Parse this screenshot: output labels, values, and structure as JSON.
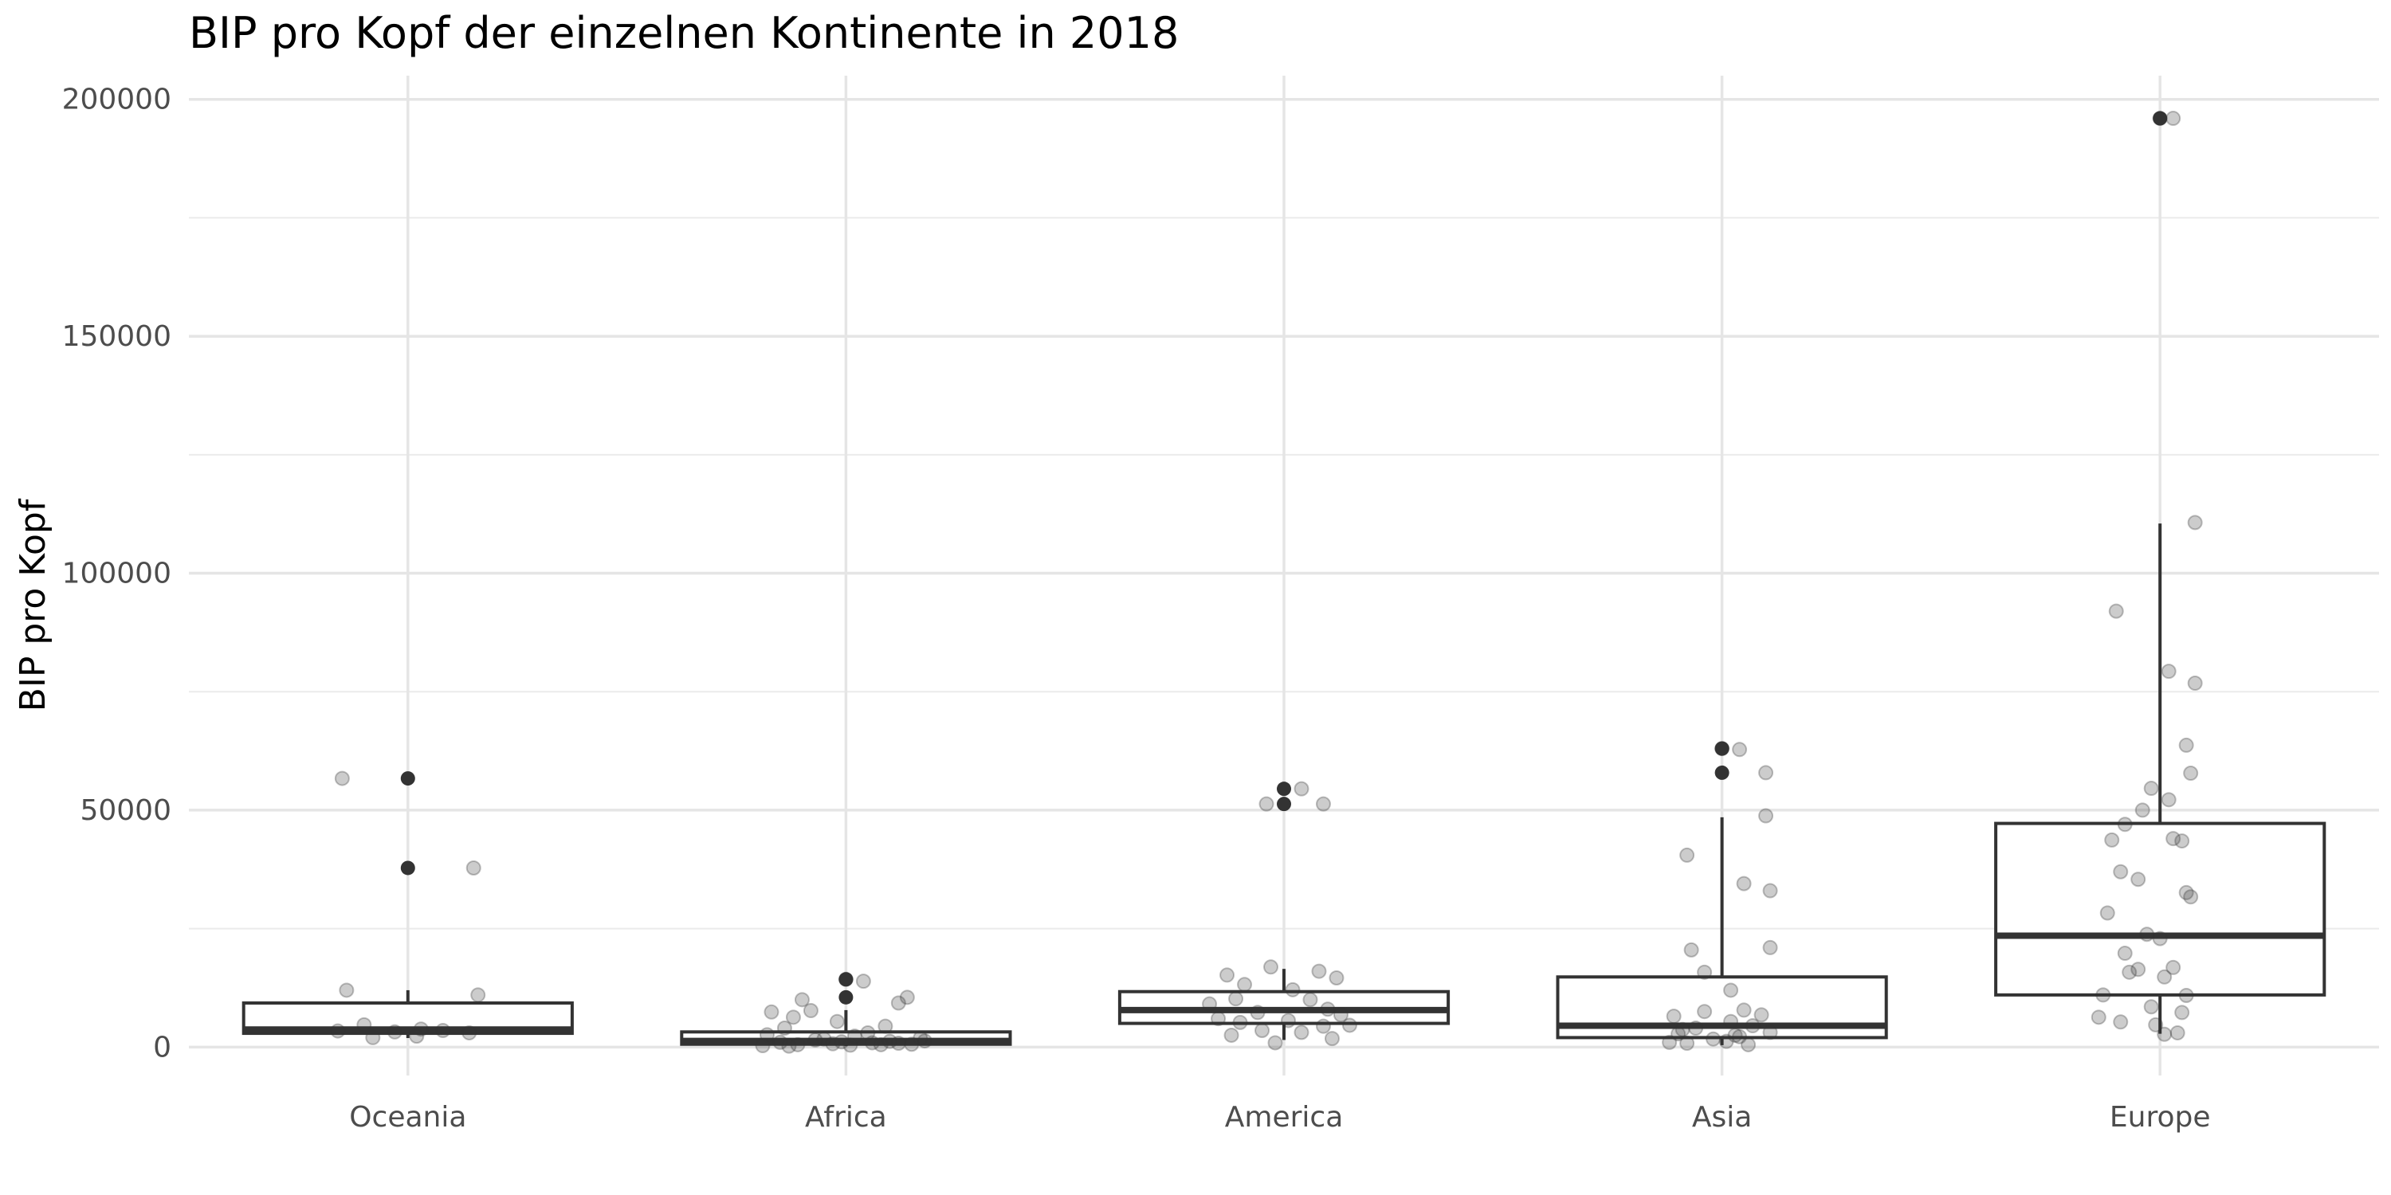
{
  "chart_data": {
    "type": "boxplot",
    "title": "BIP pro Kopf der einzelnen Kontinente in 2018",
    "xlabel": "",
    "ylabel": "BIP pro Kopf",
    "ylim": [
      -6000,
      205000
    ],
    "yticks": [
      0,
      50000,
      100000,
      150000,
      200000
    ],
    "grid": true,
    "categories": [
      "Oceania",
      "Africa",
      "America",
      "Asia",
      "Europe"
    ],
    "box_color": "#333333",
    "point_color": "#333333",
    "boxes": [
      {
        "category": "Oceania",
        "q1": 2900,
        "median": 3700,
        "q3": 9300,
        "whisker_low": 1900,
        "whisker_high": 12000,
        "outliers": [
          37800,
          56700
        ],
        "points": [
          [
            -0.15,
            56700
          ],
          [
            0.15,
            37800
          ],
          [
            -0.14,
            12000
          ],
          [
            0.16,
            11000
          ],
          [
            -0.1,
            4700
          ],
          [
            0.03,
            3800
          ],
          [
            0.08,
            3500
          ],
          [
            -0.03,
            3200
          ],
          [
            0.14,
            3000
          ],
          [
            -0.16,
            3400
          ],
          [
            0.02,
            2300
          ],
          [
            -0.08,
            2000
          ]
        ]
      },
      {
        "category": "Africa",
        "q1": 600,
        "median": 1300,
        "q3": 3200,
        "whisker_low": 200,
        "whisker_high": 7800,
        "outliers": [
          10500,
          14300
        ],
        "points": [
          [
            0.0,
            14300
          ],
          [
            0.04,
            13900
          ],
          [
            0.14,
            10500
          ],
          [
            -0.1,
            10000
          ],
          [
            0.12,
            9300
          ],
          [
            -0.17,
            7400
          ],
          [
            -0.08,
            7700
          ],
          [
            -0.12,
            6300
          ],
          [
            -0.02,
            5400
          ],
          [
            0.09,
            4400
          ],
          [
            -0.14,
            4000
          ],
          [
            0.05,
            3000
          ],
          [
            -0.18,
            2600
          ],
          [
            0.02,
            2300
          ],
          [
            0.17,
            1900
          ],
          [
            -0.07,
            1500
          ],
          [
            0.1,
            1200
          ],
          [
            -0.15,
            1000
          ],
          [
            0.06,
            900
          ],
          [
            -0.03,
            700
          ],
          [
            0.15,
            600
          ],
          [
            -0.11,
            500
          ],
          [
            0.01,
            400
          ],
          [
            -0.19,
            300
          ],
          [
            0.12,
            800
          ],
          [
            -0.05,
            1700
          ],
          [
            0.18,
            1300
          ],
          [
            -0.01,
            1100
          ],
          [
            0.08,
            500
          ],
          [
            -0.13,
            200
          ]
        ]
      },
      {
        "category": "America",
        "q1": 5000,
        "median": 7800,
        "q3": 11700,
        "whisker_low": 1500,
        "whisker_high": 16500,
        "outliers": [
          51300,
          54500
        ],
        "points": [
          [
            0.04,
            54500
          ],
          [
            -0.04,
            51300
          ],
          [
            0.09,
            51300
          ],
          [
            -0.03,
            16900
          ],
          [
            0.08,
            16000
          ],
          [
            -0.13,
            15200
          ],
          [
            0.12,
            14600
          ],
          [
            -0.09,
            13200
          ],
          [
            0.02,
            12100
          ],
          [
            -0.11,
            10200
          ],
          [
            0.06,
            10000
          ],
          [
            -0.17,
            9100
          ],
          [
            0.1,
            8000
          ],
          [
            -0.06,
            7300
          ],
          [
            0.13,
            6800
          ],
          [
            -0.15,
            6000
          ],
          [
            0.01,
            5600
          ],
          [
            -0.1,
            5200
          ],
          [
            0.09,
            4400
          ],
          [
            -0.05,
            3500
          ],
          [
            0.04,
            3100
          ],
          [
            -0.12,
            2500
          ],
          [
            0.11,
            1800
          ],
          [
            -0.02,
            900
          ],
          [
            0.15,
            4600
          ]
        ]
      },
      {
        "category": "Asia",
        "q1": 2000,
        "median": 4500,
        "q3": 14800,
        "whisker_low": 400,
        "whisker_high": 48500,
        "outliers": [
          57900,
          63000
        ],
        "points": [
          [
            0.0,
            63000
          ],
          [
            0.04,
            62800
          ],
          [
            0.1,
            57900
          ],
          [
            0.1,
            48800
          ],
          [
            -0.08,
            40500
          ],
          [
            0.11,
            33000
          ],
          [
            0.05,
            34500
          ],
          [
            0.11,
            21000
          ],
          [
            -0.07,
            20500
          ],
          [
            0.02,
            12000
          ],
          [
            -0.04,
            15800
          ],
          [
            0.05,
            7800
          ],
          [
            -0.11,
            6500
          ],
          [
            0.02,
            5400
          ],
          [
            0.07,
            4500
          ],
          [
            -0.06,
            4000
          ],
          [
            0.11,
            3100
          ],
          [
            -0.1,
            2800
          ],
          [
            0.04,
            2200
          ],
          [
            -0.02,
            1700
          ],
          [
            0.01,
            1200
          ],
          [
            -0.08,
            800
          ],
          [
            0.06,
            500
          ],
          [
            -0.12,
            1000
          ],
          [
            -0.04,
            7500
          ],
          [
            0.09,
            6800
          ],
          [
            -0.09,
            3700
          ],
          [
            0.03,
            2500
          ]
        ]
      },
      {
        "category": "Europe",
        "q1": 11000,
        "median": 23500,
        "q3": 47200,
        "whisker_low": 2800,
        "whisker_high": 110500,
        "outliers": [
          196000
        ],
        "points": [
          [
            0.0,
            196000
          ],
          [
            0.03,
            196000
          ],
          [
            0.08,
            110700
          ],
          [
            -0.1,
            92000
          ],
          [
            0.02,
            79300
          ],
          [
            0.08,
            76800
          ],
          [
            0.06,
            63700
          ],
          [
            0.07,
            57800
          ],
          [
            -0.02,
            54600
          ],
          [
            0.02,
            52200
          ],
          [
            -0.04,
            50000
          ],
          [
            -0.08,
            47000
          ],
          [
            0.03,
            44000
          ],
          [
            -0.11,
            43700
          ],
          [
            0.05,
            43500
          ],
          [
            -0.09,
            37000
          ],
          [
            0.06,
            32600
          ],
          [
            0.07,
            31700
          ],
          [
            -0.05,
            35400
          ],
          [
            -0.12,
            28300
          ],
          [
            -0.03,
            23800
          ],
          [
            0.0,
            22900
          ],
          [
            -0.08,
            19800
          ],
          [
            0.03,
            16800
          ],
          [
            -0.05,
            16400
          ],
          [
            -0.07,
            15800
          ],
          [
            0.01,
            14800
          ],
          [
            -0.13,
            11000
          ],
          [
            0.06,
            10900
          ],
          [
            -0.02,
            8500
          ],
          [
            0.05,
            7300
          ],
          [
            -0.14,
            6300
          ],
          [
            -0.09,
            5300
          ],
          [
            -0.01,
            4700
          ],
          [
            0.01,
            2700
          ],
          [
            0.04,
            3000
          ]
        ]
      }
    ]
  }
}
